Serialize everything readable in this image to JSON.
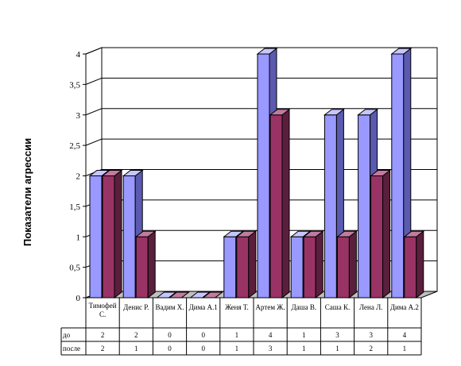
{
  "chart_data": {
    "type": "bar",
    "title": "",
    "xlabel": "",
    "ylabel": "Показатели агрессии",
    "ylim": [
      0,
      4
    ],
    "yticks": [
      "0",
      "0,5",
      "1",
      "1,5",
      "2",
      "2,5",
      "3",
      "3,5",
      "4"
    ],
    "categories": [
      "Тимофей С.",
      "Денис Р.",
      "Вадим Х.",
      "Дима А.1",
      "Женя Т.",
      "Артем Ж.",
      "Даша В.",
      "Саша К.",
      "Лена Л.",
      "Дима А.2"
    ],
    "series": [
      {
        "name": "до",
        "values": [
          2,
          2,
          0,
          0,
          1,
          4,
          1,
          3,
          3,
          4
        ],
        "color": "#9999ff"
      },
      {
        "name": "после",
        "values": [
          2,
          1,
          0,
          0,
          1,
          3,
          1,
          1,
          2,
          1
        ],
        "color": "#993366"
      }
    ],
    "table_values": [
      [
        "2",
        "2",
        "0",
        "0",
        "1",
        "4",
        "1",
        "3",
        "3",
        "4"
      ],
      [
        "2",
        "1",
        "0",
        "0",
        "1",
        "3",
        "1",
        "1",
        "2",
        "1"
      ]
    ],
    "grid": true,
    "legend": "data-table"
  }
}
